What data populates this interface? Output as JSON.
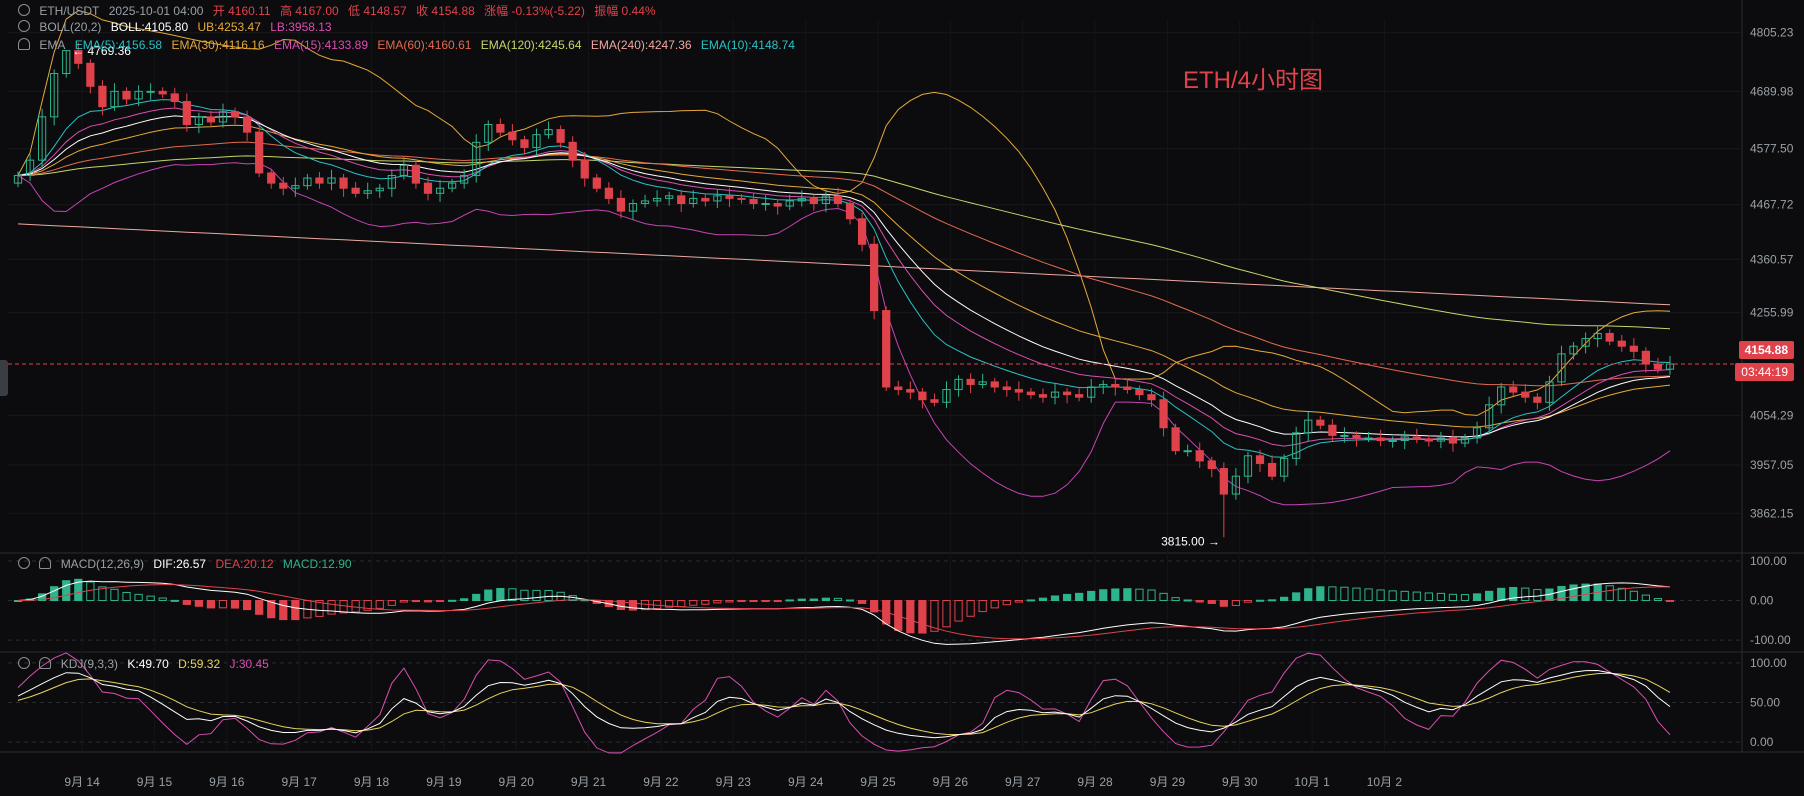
{
  "header": {
    "symbol_line": [
      "ETH/USDT",
      "2025-10-01 04:00",
      "开 4160.11",
      "高 4167.00",
      "低 4148.57",
      "收 4154.88",
      "涨幅 -0.13%(-5.22)",
      "振幅 0.44%"
    ],
    "boll_label": "BOLL(20,2)",
    "boll_values": [
      "BOLL:4105.80",
      "UB:4253.47",
      "LB:3958.13"
    ],
    "ema_label": "EMA",
    "ema_values": [
      "EMA(5):4156.58",
      "EMA(30):4116.16",
      "EMA(15):4133.89",
      "EMA(60):4160.61",
      "EMA(120):4245.64",
      "EMA(240):4247.36",
      "EMA(10):4148.74"
    ],
    "macd_label": "MACD(12,26,9)",
    "macd_values": [
      "DIF:26.57",
      "DEA:20.12",
      "MACD:12.90"
    ],
    "kdj_label": "KDJ(9,3,3)",
    "kdj_values": [
      "K:49.70",
      "D:59.32",
      "J:30.45"
    ]
  },
  "watermark": "ETH/4小时图",
  "price_tag": "4154.88",
  "countdown_tag": "03:44:19",
  "annotations": {
    "high": "← 4769.36",
    "low": "3815.00 →"
  },
  "colors": {
    "up": "#2fb38c",
    "down": "#e0424b",
    "bg": "#0c0c0e",
    "ema5": "#ffffff",
    "ema10": "#2bc1c4",
    "ema15": "#d94fb0",
    "ema30": "#e5a93b",
    "ema60": "#e26a4f",
    "ema120": "#c8d46a",
    "ema240": "#f0a7a0",
    "boll_ub": "#e5a93b",
    "boll_lb": "#c644b6",
    "dif": "#ffffff",
    "dea": "#e0424b",
    "k": "#ffffff",
    "d": "#e8d35c",
    "j": "#d94fb0"
  },
  "chart_data": {
    "type": "candlestick",
    "x_ticks": [
      "9月 14",
      "9月 15",
      "9月 16",
      "9月 17",
      "9月 18",
      "9月 19",
      "9月 20",
      "9月 21",
      "9月 22",
      "9月 23",
      "9月 24",
      "9月 25",
      "9月 26",
      "9月 27",
      "9月 28",
      "9月 29",
      "9月 30",
      "10月 1",
      "10月 2"
    ],
    "price_ticks": [
      "4805.23",
      "4689.98",
      "4577.50",
      "4467.72",
      "4360.57",
      "4255.99",
      "4054.29",
      "3957.05",
      "3862.15"
    ],
    "macd_ticks": [
      "100.00",
      "0.00",
      "-100.00"
    ],
    "kdj_ticks": [
      "100.00",
      "50.00",
      "0.00"
    ],
    "price_range": [
      3800,
      4830
    ],
    "macd_range": [
      -125,
      115
    ],
    "kdj_range": [
      -10,
      110
    ],
    "close": [
      4525,
      4555,
      4640,
      4725,
      4770,
      4745,
      4700,
      4660,
      4690,
      4675,
      4690,
      4690,
      4685,
      4670,
      4625,
      4640,
      4630,
      4650,
      4640,
      4610,
      4530,
      4510,
      4500,
      4505,
      4520,
      4510,
      4520,
      4500,
      4490,
      4495,
      4500,
      4525,
      4545,
      4510,
      4490,
      4500,
      4510,
      4525,
      4590,
      4625,
      4610,
      4595,
      4580,
      4605,
      4615,
      4590,
      4555,
      4520,
      4500,
      4480,
      4455,
      4470,
      4475,
      4480,
      4485,
      4470,
      4480,
      4475,
      4485,
      4480,
      4478,
      4470,
      4470,
      4465,
      4475,
      4480,
      4470,
      4485,
      4470,
      4440,
      4390,
      4260,
      4110,
      4105,
      4100,
      4085,
      4080,
      4105,
      4125,
      4115,
      4120,
      4110,
      4105,
      4100,
      4095,
      4090,
      4100,
      4095,
      4090,
      4110,
      4115,
      4110,
      4105,
      4095,
      4085,
      4030,
      3985,
      3985,
      3965,
      3950,
      3900,
      3935,
      3975,
      3960,
      3935,
      3970,
      4020,
      4045,
      4035,
      4015,
      4015,
      4010,
      4010,
      4005,
      4005,
      4012,
      4008,
      4004,
      4010,
      4000,
      4010,
      4030,
      4075,
      4110,
      4100,
      4090,
      4080,
      4120,
      4175,
      4190,
      4205,
      4215,
      4200,
      4190,
      4180,
      4155,
      4145,
      4155
    ]
  }
}
